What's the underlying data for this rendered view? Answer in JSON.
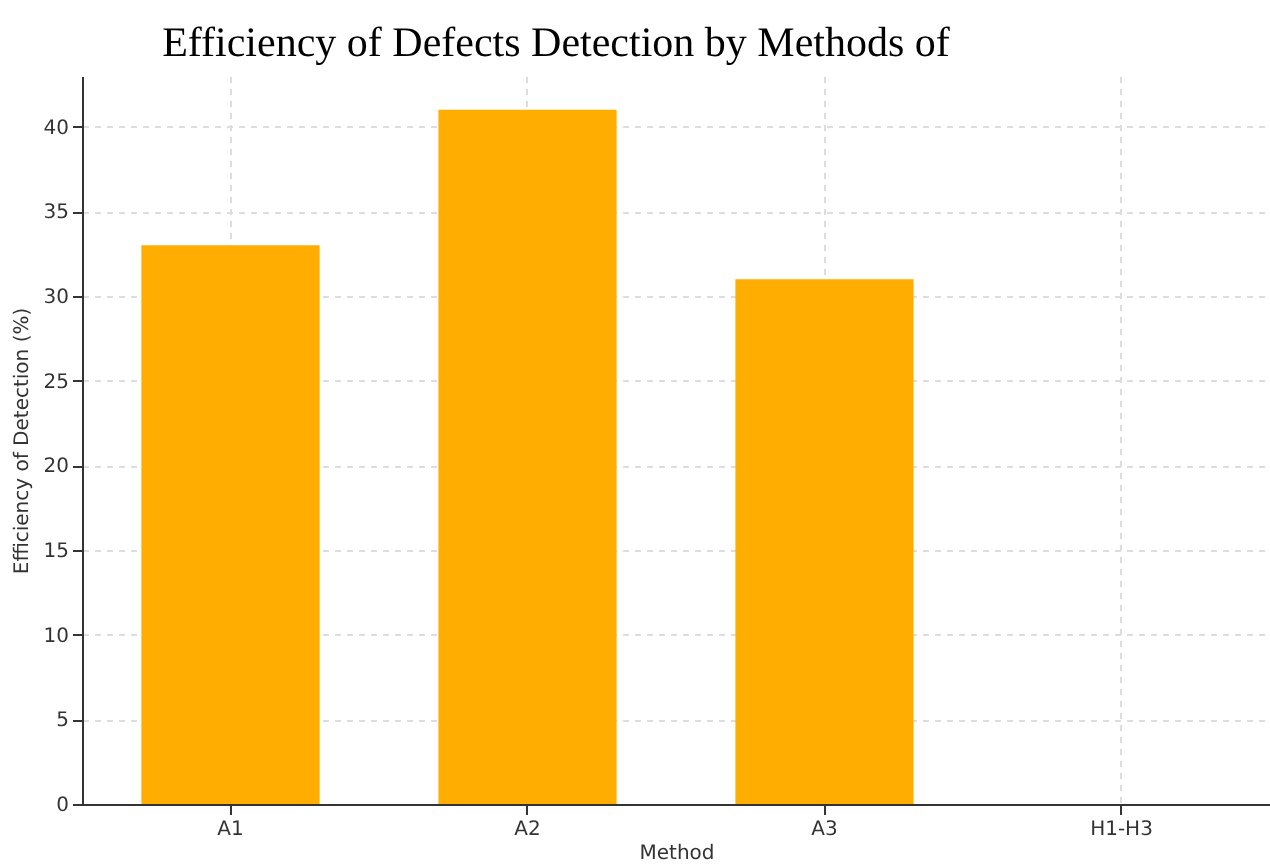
{
  "chart_data": {
    "type": "bar",
    "title": "Efficiency of Defects Detection by Methods of",
    "xlabel": "Method",
    "ylabel": "Efficiency of Detection (%)",
    "categories": [
      "A1",
      "A2",
      "A3",
      "H1-H3"
    ],
    "values": [
      33,
      41,
      31,
      null
    ],
    "color": "#ffad00",
    "ylim": [
      0,
      43
    ],
    "yticks": [
      0,
      5,
      10,
      15,
      20,
      25,
      30,
      35,
      40
    ],
    "grid": true
  }
}
